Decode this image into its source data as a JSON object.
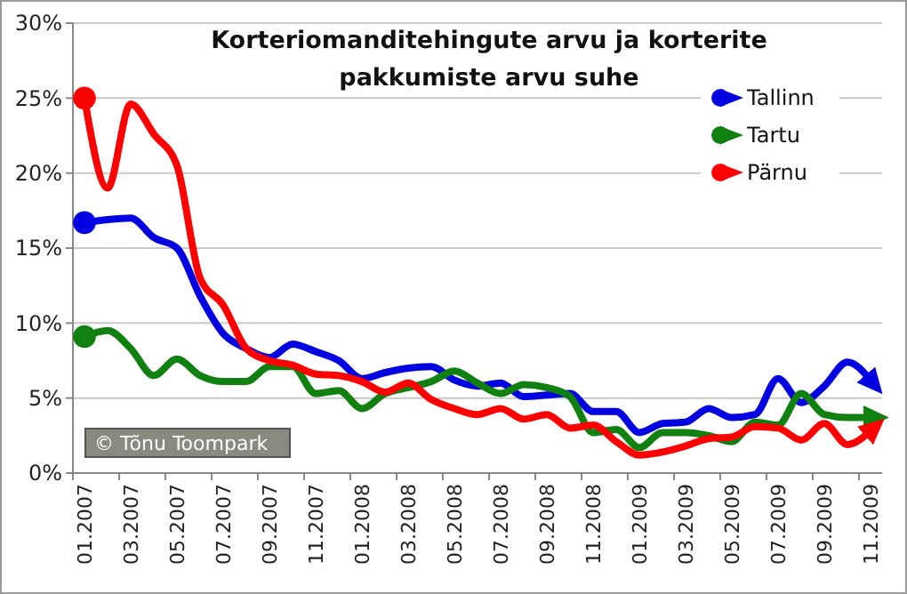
{
  "chart_data": {
    "type": "line",
    "title": "Korteriomanditehingute arvu ja korterite pakkumiste arvu suhe",
    "categories": [
      "01.2007",
      null,
      "03.2007",
      null,
      "05.2007",
      null,
      "07.2007",
      null,
      "09.2007",
      null,
      "11.2007",
      null,
      "01.2008",
      null,
      "03.2008",
      null,
      "05.2008",
      null,
      "07.2008",
      null,
      "09.2008",
      null,
      "11.2008",
      null,
      "01.2009",
      null,
      "03.2009",
      null,
      "05.2009",
      null,
      "07.2009",
      null,
      "09.2009",
      null,
      "11.2009"
    ],
    "series": [
      {
        "name": "Tallinn",
        "color": "#0000e0",
        "values": [
          16.7,
          16.9,
          17.0,
          15.7,
          15.0,
          11.8,
          9.3,
          8.3,
          7.7,
          8.6,
          8.1,
          7.5,
          6.3,
          6.7,
          7.0,
          7.1,
          6.2,
          5.8,
          6.0,
          5.1,
          5.2,
          5.3,
          4.1,
          4.1,
          2.7,
          3.3,
          3.4,
          4.3,
          3.7,
          3.9,
          6.3,
          4.7,
          5.8,
          7.4,
          6.2
        ]
      },
      {
        "name": "Tartu",
        "color": "#108010",
        "values": [
          9.1,
          9.5,
          8.3,
          6.5,
          7.6,
          6.5,
          6.1,
          6.1,
          7.1,
          7.1,
          5.3,
          5.5,
          4.3,
          5.3,
          5.7,
          6.1,
          6.8,
          6.0,
          5.3,
          5.9,
          5.7,
          5.1,
          2.7,
          2.9,
          1.7,
          2.7,
          2.7,
          2.5,
          2.1,
          3.4,
          3.2,
          5.3,
          3.9,
          3.7,
          3.7
        ]
      },
      {
        "name": "Pärnu",
        "color": "#ff0000",
        "values": [
          25.0,
          19.0,
          24.6,
          22.6,
          20.5,
          13.0,
          11.2,
          8.3,
          7.5,
          7.2,
          6.6,
          6.5,
          6.1,
          5.4,
          6.0,
          4.9,
          4.3,
          3.9,
          4.3,
          3.6,
          3.9,
          3.0,
          3.2,
          2.1,
          1.2,
          1.4,
          1.8,
          2.3,
          2.4,
          3.1,
          3.0,
          2.2,
          3.3,
          1.9,
          2.8
        ]
      }
    ],
    "ylim": [
      0,
      30
    ],
    "yticks": [
      {
        "value": 0,
        "label": "0%"
      },
      {
        "value": 5,
        "label": "5%"
      },
      {
        "value": 10,
        "label": "10%"
      },
      {
        "value": 15,
        "label": "15%"
      },
      {
        "value": 20,
        "label": "20%"
      },
      {
        "value": 25,
        "label": "25%"
      },
      {
        "value": 30,
        "label": "30%"
      }
    ],
    "grid": "y",
    "legend": "top right",
    "annotations": [
      "© Tõnu Toompark"
    ]
  }
}
